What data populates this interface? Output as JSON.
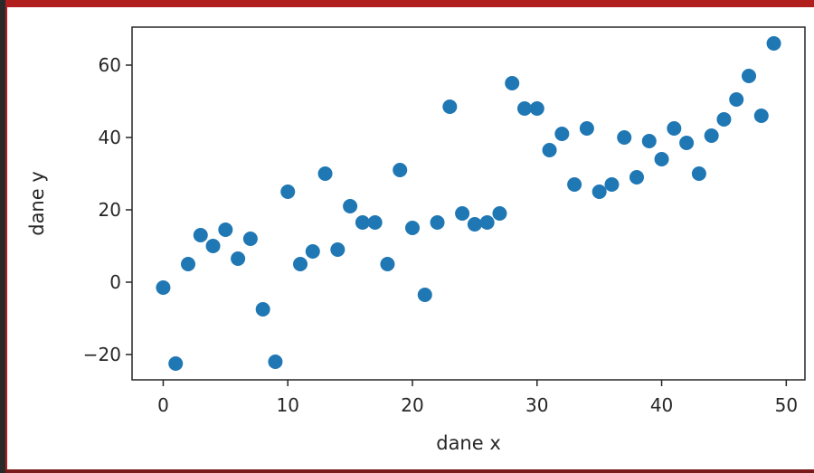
{
  "chart_data": {
    "type": "scatter",
    "title": "",
    "xlabel": "dane x",
    "ylabel": "dane y",
    "xlim": [
      -2.5,
      51.5
    ],
    "ylim": [
      -27,
      70.5
    ],
    "xticks": [
      0,
      10,
      20,
      30,
      40,
      50
    ],
    "yticks": [
      -20,
      0,
      20,
      40,
      60
    ],
    "xtick_labels": [
      "0",
      "10",
      "20",
      "30",
      "40",
      "50"
    ],
    "ytick_labels": [
      "−20",
      "0",
      "20",
      "40",
      "60"
    ],
    "grid": false,
    "marker_color": "#1f77b4",
    "series": [
      {
        "x": [
          0,
          1,
          2,
          3,
          4,
          5,
          6,
          7,
          8,
          9,
          10,
          11,
          12,
          13,
          14,
          15,
          16,
          17,
          18,
          19,
          20,
          21,
          22,
          23,
          24,
          25,
          26,
          27,
          28,
          29,
          30,
          31,
          32,
          33,
          34,
          35,
          36,
          37,
          38,
          39,
          40,
          41,
          42,
          43,
          44,
          45,
          46,
          47,
          48,
          49
        ],
        "y": [
          -1.5,
          -22.5,
          5,
          13,
          10,
          14.5,
          6.5,
          12,
          -7.5,
          -22,
          25,
          5,
          8.5,
          30,
          9,
          21,
          16.5,
          16.5,
          5,
          31,
          15,
          -3.5,
          16.5,
          48.5,
          19,
          16,
          16.5,
          19,
          55,
          48,
          48,
          36.5,
          41,
          27,
          42.5,
          25,
          27,
          40,
          29,
          39,
          34,
          42.5,
          38.5,
          30,
          40.5,
          45,
          50.5,
          57,
          46,
          66
        ]
      }
    ]
  }
}
